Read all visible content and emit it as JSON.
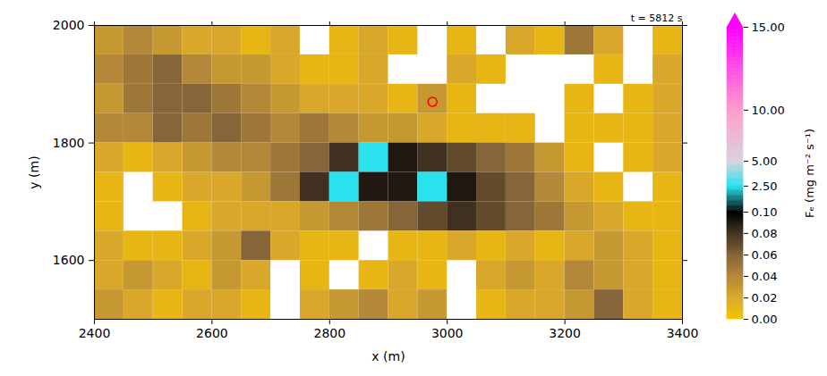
{
  "chart_data": {
    "type": "heatmap",
    "annotation": "t = 5812 s",
    "x_label": "x (m)",
    "y_label": "y (m)",
    "xlim": [
      2400,
      3400
    ],
    "ylim": [
      1500,
      2000
    ],
    "xticks": [
      2400,
      2600,
      2800,
      3000,
      3200,
      3400
    ],
    "yticks": [
      1600,
      1800,
      2000
    ],
    "cells": {
      "x": [
        2425,
        2475,
        2525,
        2575,
        2625,
        2675,
        2725,
        2775,
        2825,
        2875,
        2925,
        2975,
        3025,
        3075,
        3125,
        3175,
        3225,
        3275,
        3325,
        3375
      ],
      "y": [
        1975,
        1925,
        1875,
        1825,
        1775,
        1725,
        1675,
        1625,
        1575,
        1525
      ],
      "values": [
        [
          0.03,
          0.04,
          0.03,
          0.02,
          0.02,
          0.01,
          0.02,
          null,
          0.01,
          0.02,
          0.01,
          null,
          0.01,
          null,
          0.02,
          0.01,
          0.05,
          0.02,
          null,
          0.01
        ],
        [
          0.04,
          0.05,
          0.06,
          0.04,
          0.03,
          0.03,
          0.02,
          0.01,
          0.01,
          0.02,
          null,
          null,
          0.02,
          0.01,
          null,
          null,
          null,
          0.01,
          null,
          0.02
        ],
        [
          0.03,
          0.05,
          0.06,
          0.06,
          0.05,
          0.04,
          0.03,
          0.02,
          0.02,
          0.02,
          0.01,
          0.03,
          0.01,
          null,
          null,
          null,
          0.01,
          null,
          0.01,
          0.02
        ],
        [
          0.04,
          0.04,
          0.06,
          0.05,
          0.06,
          0.05,
          0.04,
          0.05,
          0.04,
          0.03,
          0.03,
          0.02,
          0.01,
          0.01,
          0.01,
          null,
          0.01,
          0.01,
          0.01,
          0.02
        ],
        [
          0.02,
          0.01,
          0.02,
          0.03,
          0.04,
          0.04,
          0.05,
          0.06,
          0.08,
          2.6,
          0.09,
          0.08,
          0.07,
          0.06,
          0.05,
          0.03,
          0.01,
          null,
          0.01,
          0.02
        ],
        [
          0.01,
          null,
          0.01,
          0.02,
          0.02,
          0.03,
          0.05,
          0.08,
          2.6,
          0.09,
          0.09,
          2.6,
          0.09,
          0.07,
          0.06,
          0.04,
          0.02,
          0.01,
          null,
          0.01
        ],
        [
          0.01,
          null,
          null,
          0.01,
          0.02,
          0.02,
          0.02,
          0.03,
          0.04,
          0.05,
          0.06,
          0.07,
          0.08,
          0.07,
          0.06,
          0.05,
          0.03,
          0.02,
          0.01,
          0.01
        ],
        [
          0.02,
          0.01,
          0.01,
          0.02,
          0.03,
          0.06,
          0.02,
          0.01,
          0.01,
          null,
          0.01,
          0.01,
          0.02,
          0.01,
          0.02,
          0.01,
          0.02,
          0.03,
          0.02,
          0.01
        ],
        [
          0.02,
          0.03,
          0.02,
          0.01,
          0.03,
          0.02,
          null,
          0.01,
          null,
          0.01,
          0.02,
          0.01,
          null,
          0.02,
          0.03,
          0.02,
          0.04,
          0.03,
          0.02,
          0.01
        ],
        [
          0.03,
          0.02,
          0.01,
          0.02,
          0.02,
          0.01,
          null,
          0.02,
          0.03,
          0.04,
          0.02,
          0.03,
          null,
          0.01,
          0.02,
          0.02,
          0.03,
          0.06,
          0.02,
          0.01
        ]
      ]
    },
    "markers": [
      {
        "x": 2975,
        "y": 1870,
        "color": "red",
        "marker": "circle"
      }
    ],
    "colorbar": {
      "label": "Fₑ (mg m⁻² s⁻¹)",
      "lim": [
        0,
        15
      ],
      "ticks": [
        {
          "value": 0,
          "label": "0.00"
        },
        {
          "value": 0.02,
          "label": "0.02"
        },
        {
          "value": 0.04,
          "label": "0.04"
        },
        {
          "value": 0.06,
          "label": "0.06"
        },
        {
          "value": 0.08,
          "label": "0.08"
        },
        {
          "value": 0.1,
          "label": "0.10"
        },
        {
          "value": 2.5,
          "label": "2.50"
        },
        {
          "value": 5,
          "label": "5.00"
        },
        {
          "value": 10,
          "label": "10.00"
        },
        {
          "value": 15,
          "label": "15.00"
        }
      ]
    }
  }
}
